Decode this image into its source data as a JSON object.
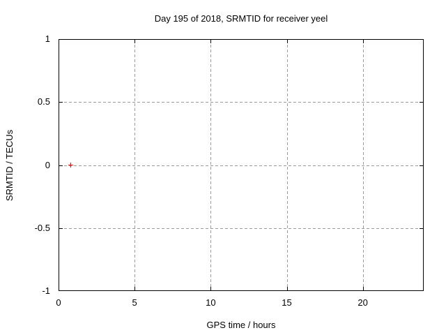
{
  "chart_data": {
    "type": "scatter",
    "title": "Day 195 of 2018, SRMTID for receiver yeel",
    "xlabel": "GPS time / hours",
    "ylabel": "SRMTID / TECUs",
    "xlim": [
      0,
      24
    ],
    "ylim": [
      -1,
      1
    ],
    "xticks": [
      0,
      5,
      10,
      15,
      20
    ],
    "yticks": [
      -1,
      -0.5,
      0,
      0.5,
      1
    ],
    "grid": true,
    "legend_position": "none",
    "series": [
      {
        "name": "SRMTID",
        "marker": "plus",
        "color": "#ff0000",
        "points": [
          {
            "x": 0.78,
            "y": 0.0
          }
        ]
      }
    ]
  },
  "colors": {
    "background": "#ffffff",
    "axis": "#000000",
    "grid": "#9a9a9a",
    "text": "#000000",
    "point": "#ff0000"
  }
}
